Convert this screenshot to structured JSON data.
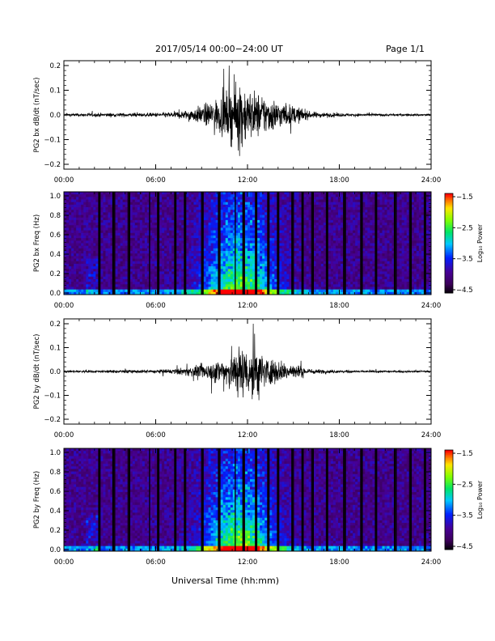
{
  "header": {
    "title": "2017/05/14  00:00−24:00 UT",
    "page": "Page 1/1"
  },
  "footer": {
    "xlabel": "Universal Time (hh:mm)"
  },
  "colors": {
    "trace": "#000000",
    "axis": "#000000"
  },
  "chart_data": [
    {
      "type": "line",
      "ylabel": "PG2 bx dB/dt (nT/sec)",
      "x_ticks": [
        "00:00",
        "06:00",
        "12:00",
        "18:00",
        "24:00"
      ],
      "y_ticks": [
        "0.2",
        "0.1",
        "0.0",
        "−0.1",
        "−0.2"
      ],
      "xlim": [
        0,
        24
      ],
      "ylim": [
        -0.2,
        0.2
      ],
      "envelope": {
        "x_hours": [
          0,
          2,
          5.5,
          7,
          8,
          9,
          10,
          10.5,
          11,
          11.5,
          12,
          13,
          14,
          15,
          15.5,
          16,
          17,
          19,
          24
        ],
        "amp": [
          0.006,
          0.008,
          0.008,
          0.012,
          0.02,
          0.04,
          0.07,
          0.09,
          0.12,
          0.16,
          0.11,
          0.09,
          0.06,
          0.04,
          0.03,
          0.015,
          0.01,
          0.006,
          0.005
        ]
      }
    },
    {
      "type": "heatmap",
      "ylabel": "PG2 bx Freq (Hz)",
      "x_ticks": [
        "00:00",
        "06:00",
        "12:00",
        "18:00",
        "24:00"
      ],
      "y_ticks": [
        "1.0",
        "0.8",
        "0.6",
        "0.4",
        "0.2",
        "0.0"
      ],
      "xlim": [
        0,
        24
      ],
      "ylim": [
        0,
        1
      ],
      "colorbar": {
        "label": "Log₁₀ Power",
        "ticks": [
          "−1.5",
          "−2.5",
          "−3.5",
          "−4.5"
        ],
        "range": [
          -4.5,
          -1.5
        ]
      },
      "gap_hours": [
        2.3,
        3.2,
        4.3,
        5.6,
        6.2,
        7.3,
        7.9,
        9.1,
        10.1,
        11.2,
        11.7,
        12.6,
        13.4,
        14.0,
        14.9,
        15.6,
        16.3,
        17.2,
        18.4,
        19.5,
        20.4,
        21.6,
        22.7,
        23.6
      ]
    },
    {
      "type": "line",
      "ylabel": "PG2 by dB/dt (nT/sec)",
      "x_ticks": [
        "00:00",
        "06:00",
        "12:00",
        "18:00",
        "24:00"
      ],
      "y_ticks": [
        "0.2",
        "0.1",
        "0.0",
        "−0.1",
        "−0.2"
      ],
      "xlim": [
        0,
        24
      ],
      "ylim": [
        -0.2,
        0.2
      ],
      "envelope": {
        "x_hours": [
          0,
          2,
          5.5,
          7,
          8,
          9,
          10,
          10.5,
          11,
          11.5,
          12,
          12.5,
          13,
          14,
          15,
          15.5,
          16,
          17,
          19,
          24
        ],
        "amp": [
          0.005,
          0.006,
          0.007,
          0.01,
          0.018,
          0.03,
          0.05,
          0.07,
          0.09,
          0.12,
          0.1,
          0.16,
          0.07,
          0.05,
          0.035,
          0.025,
          0.012,
          0.008,
          0.005,
          0.004
        ]
      }
    },
    {
      "type": "heatmap",
      "ylabel": "PG2 by Freq (Hz)",
      "x_ticks": [
        "00:00",
        "06:00",
        "12:00",
        "18:00",
        "24:00"
      ],
      "y_ticks": [
        "1.0",
        "0.8",
        "0.6",
        "0.4",
        "0.2",
        "0.0"
      ],
      "xlim": [
        0,
        24
      ],
      "ylim": [
        0,
        1
      ],
      "colorbar": {
        "label": "Log₁₀ Power",
        "ticks": [
          "−1.5",
          "−2.5",
          "−3.5",
          "−4.5"
        ],
        "range": [
          -4.5,
          -1.5
        ]
      },
      "gap_hours": [
        2.3,
        3.2,
        4.3,
        5.6,
        6.2,
        7.3,
        7.9,
        9.1,
        10.1,
        11.2,
        11.7,
        12.6,
        13.4,
        14.0,
        14.9,
        15.6,
        16.3,
        17.2,
        18.4,
        19.5,
        20.4,
        21.6,
        22.7,
        23.6
      ]
    }
  ]
}
